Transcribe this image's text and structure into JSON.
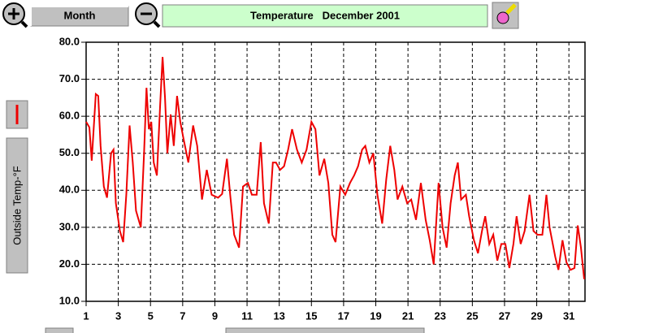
{
  "ui": {
    "period_button": "Month"
  },
  "chart_data": {
    "type": "line",
    "title": "Temperature   December 2001",
    "ylabel": "Outside Temp-°F",
    "xlim": [
      1,
      32
    ],
    "xticks": [
      1,
      3,
      5,
      7,
      9,
      11,
      13,
      15,
      17,
      19,
      21,
      23,
      25,
      27,
      29,
      31
    ],
    "ylim": [
      10,
      80
    ],
    "yticks": [
      {
        "value": 10,
        "label": "10.0"
      },
      {
        "value": 20,
        "label": "20.0"
      },
      {
        "value": 30,
        "label": "30.0"
      },
      {
        "value": 40,
        "label": "40.0"
      },
      {
        "value": 50,
        "label": "50.0"
      },
      {
        "value": 60,
        "label": "60.0"
      },
      {
        "value": 70,
        "label": "70.0"
      },
      {
        "value": 80,
        "label": "80.0"
      }
    ],
    "grid": true,
    "x": [
      1,
      1.2,
      1.35,
      1.6,
      1.75,
      1.9,
      2.1,
      2.3,
      2.55,
      2.7,
      2.85,
      3.1,
      3.3,
      3.5,
      3.7,
      3.9,
      4.1,
      4.4,
      4.6,
      4.75,
      4.9,
      5.05,
      5.2,
      5.4,
      5.6,
      5.75,
      5.9,
      6.05,
      6.25,
      6.45,
      6.65,
      6.85,
      7.05,
      7.35,
      7.65,
      7.9,
      8.2,
      8.5,
      8.8,
      9.2,
      9.45,
      9.75,
      9.95,
      10.2,
      10.5,
      10.75,
      11.05,
      11.3,
      11.6,
      11.85,
      12.05,
      12.35,
      12.6,
      12.8,
      13.05,
      13.3,
      13.55,
      13.8,
      14.1,
      14.4,
      14.7,
      15,
      15.25,
      15.5,
      15.8,
      16.05,
      16.3,
      16.5,
      16.8,
      17.1,
      17.4,
      17.65,
      17.9,
      18.15,
      18.35,
      18.6,
      18.85,
      19.1,
      19.4,
      19.65,
      19.9,
      20.15,
      20.35,
      20.65,
      20.95,
      21.2,
      21.5,
      21.8,
      22.1,
      22.35,
      22.6,
      22.9,
      23.15,
      23.4,
      23.65,
      23.9,
      24.1,
      24.3,
      24.6,
      24.8,
      25.1,
      25.35,
      25.6,
      25.8,
      26.05,
      26.3,
      26.55,
      26.8,
      27.05,
      27.3,
      27.55,
      27.75,
      28,
      28.25,
      28.55,
      28.8,
      29.05,
      29.35,
      29.6,
      29.8,
      30.15,
      30.35,
      30.6,
      30.85,
      31.1,
      31.35,
      31.55,
      31.75,
      31.95
    ],
    "series": [
      {
        "color": "#ee0000",
        "values": [
          58.5,
          57,
          48,
          66,
          65.5,
          52,
          41,
          38,
          50,
          51,
          36.5,
          29,
          26,
          39,
          57.5,
          47.5,
          34.5,
          30,
          50,
          67.7,
          56.5,
          58.5,
          47.5,
          44,
          63,
          76,
          65,
          50,
          60.5,
          52,
          65.5,
          58.5,
          54,
          47.5,
          57.5,
          52,
          37.5,
          45.5,
          38.8,
          38,
          39,
          48.5,
          38.8,
          28,
          24.5,
          41,
          42,
          38.8,
          38.8,
          53,
          36.5,
          31,
          47.5,
          47.5,
          45.5,
          46.5,
          51,
          56.5,
          51,
          47.5,
          51,
          58.5,
          56.5,
          44,
          48.5,
          42,
          28,
          26,
          41,
          38.8,
          42,
          44,
          46.5,
          51,
          52,
          47.5,
          50,
          38.8,
          31,
          43,
          52,
          45.5,
          37.5,
          41,
          36.5,
          37.5,
          32,
          42,
          32,
          26.5,
          20,
          42,
          30,
          24.5,
          36.5,
          44,
          47.5,
          37.5,
          38.8,
          33,
          26.5,
          23,
          29,
          33,
          25.5,
          28,
          21,
          25.5,
          25.5,
          19,
          25.5,
          33,
          25.5,
          29,
          38.8,
          29,
          28,
          28,
          38.8,
          30,
          22,
          18.5,
          26.5,
          20.5,
          18.5,
          19,
          30.5,
          24.5,
          16
        ]
      }
    ]
  }
}
